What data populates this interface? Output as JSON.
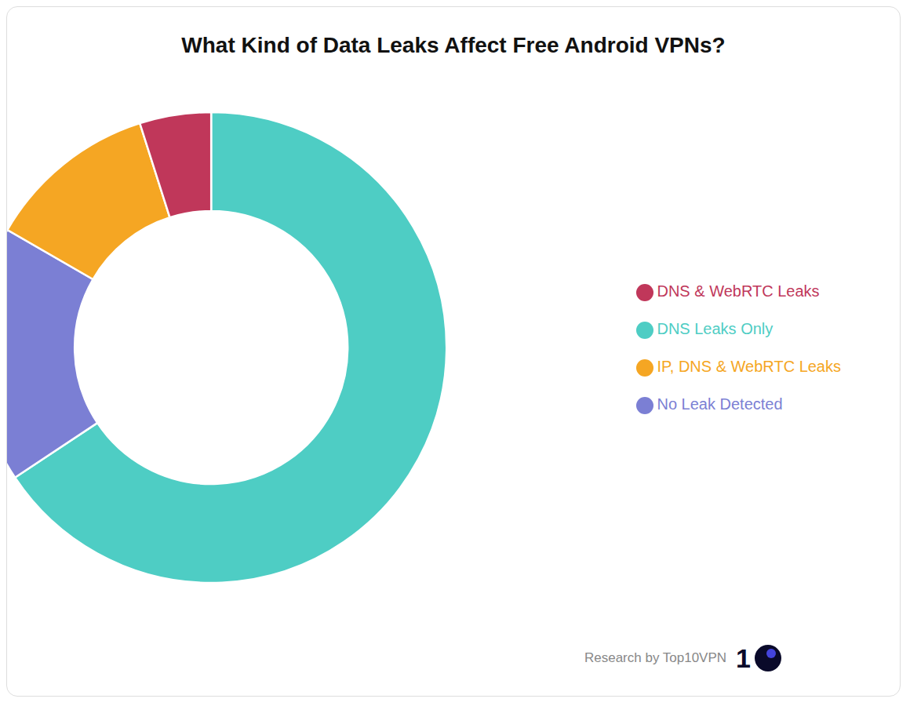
{
  "chart_data": {
    "type": "pie",
    "title": "What Kind of Data Leaks Affect Free Android VPNs?",
    "categories": [
      "DNS Leaks Only",
      "No Leak Detected",
      "IP, DNS & WebRTC Leaks",
      "DNS & WebRTC Leaks"
    ],
    "values": [
      67,
      18,
      12,
      5
    ],
    "colors": [
      "#4ECDC4",
      "#7B7FD4",
      "#F5A623",
      "#C0375A"
    ],
    "legend": "right",
    "annotations": [
      "Research by Top10VPN",
      "1"
    ]
  }
}
